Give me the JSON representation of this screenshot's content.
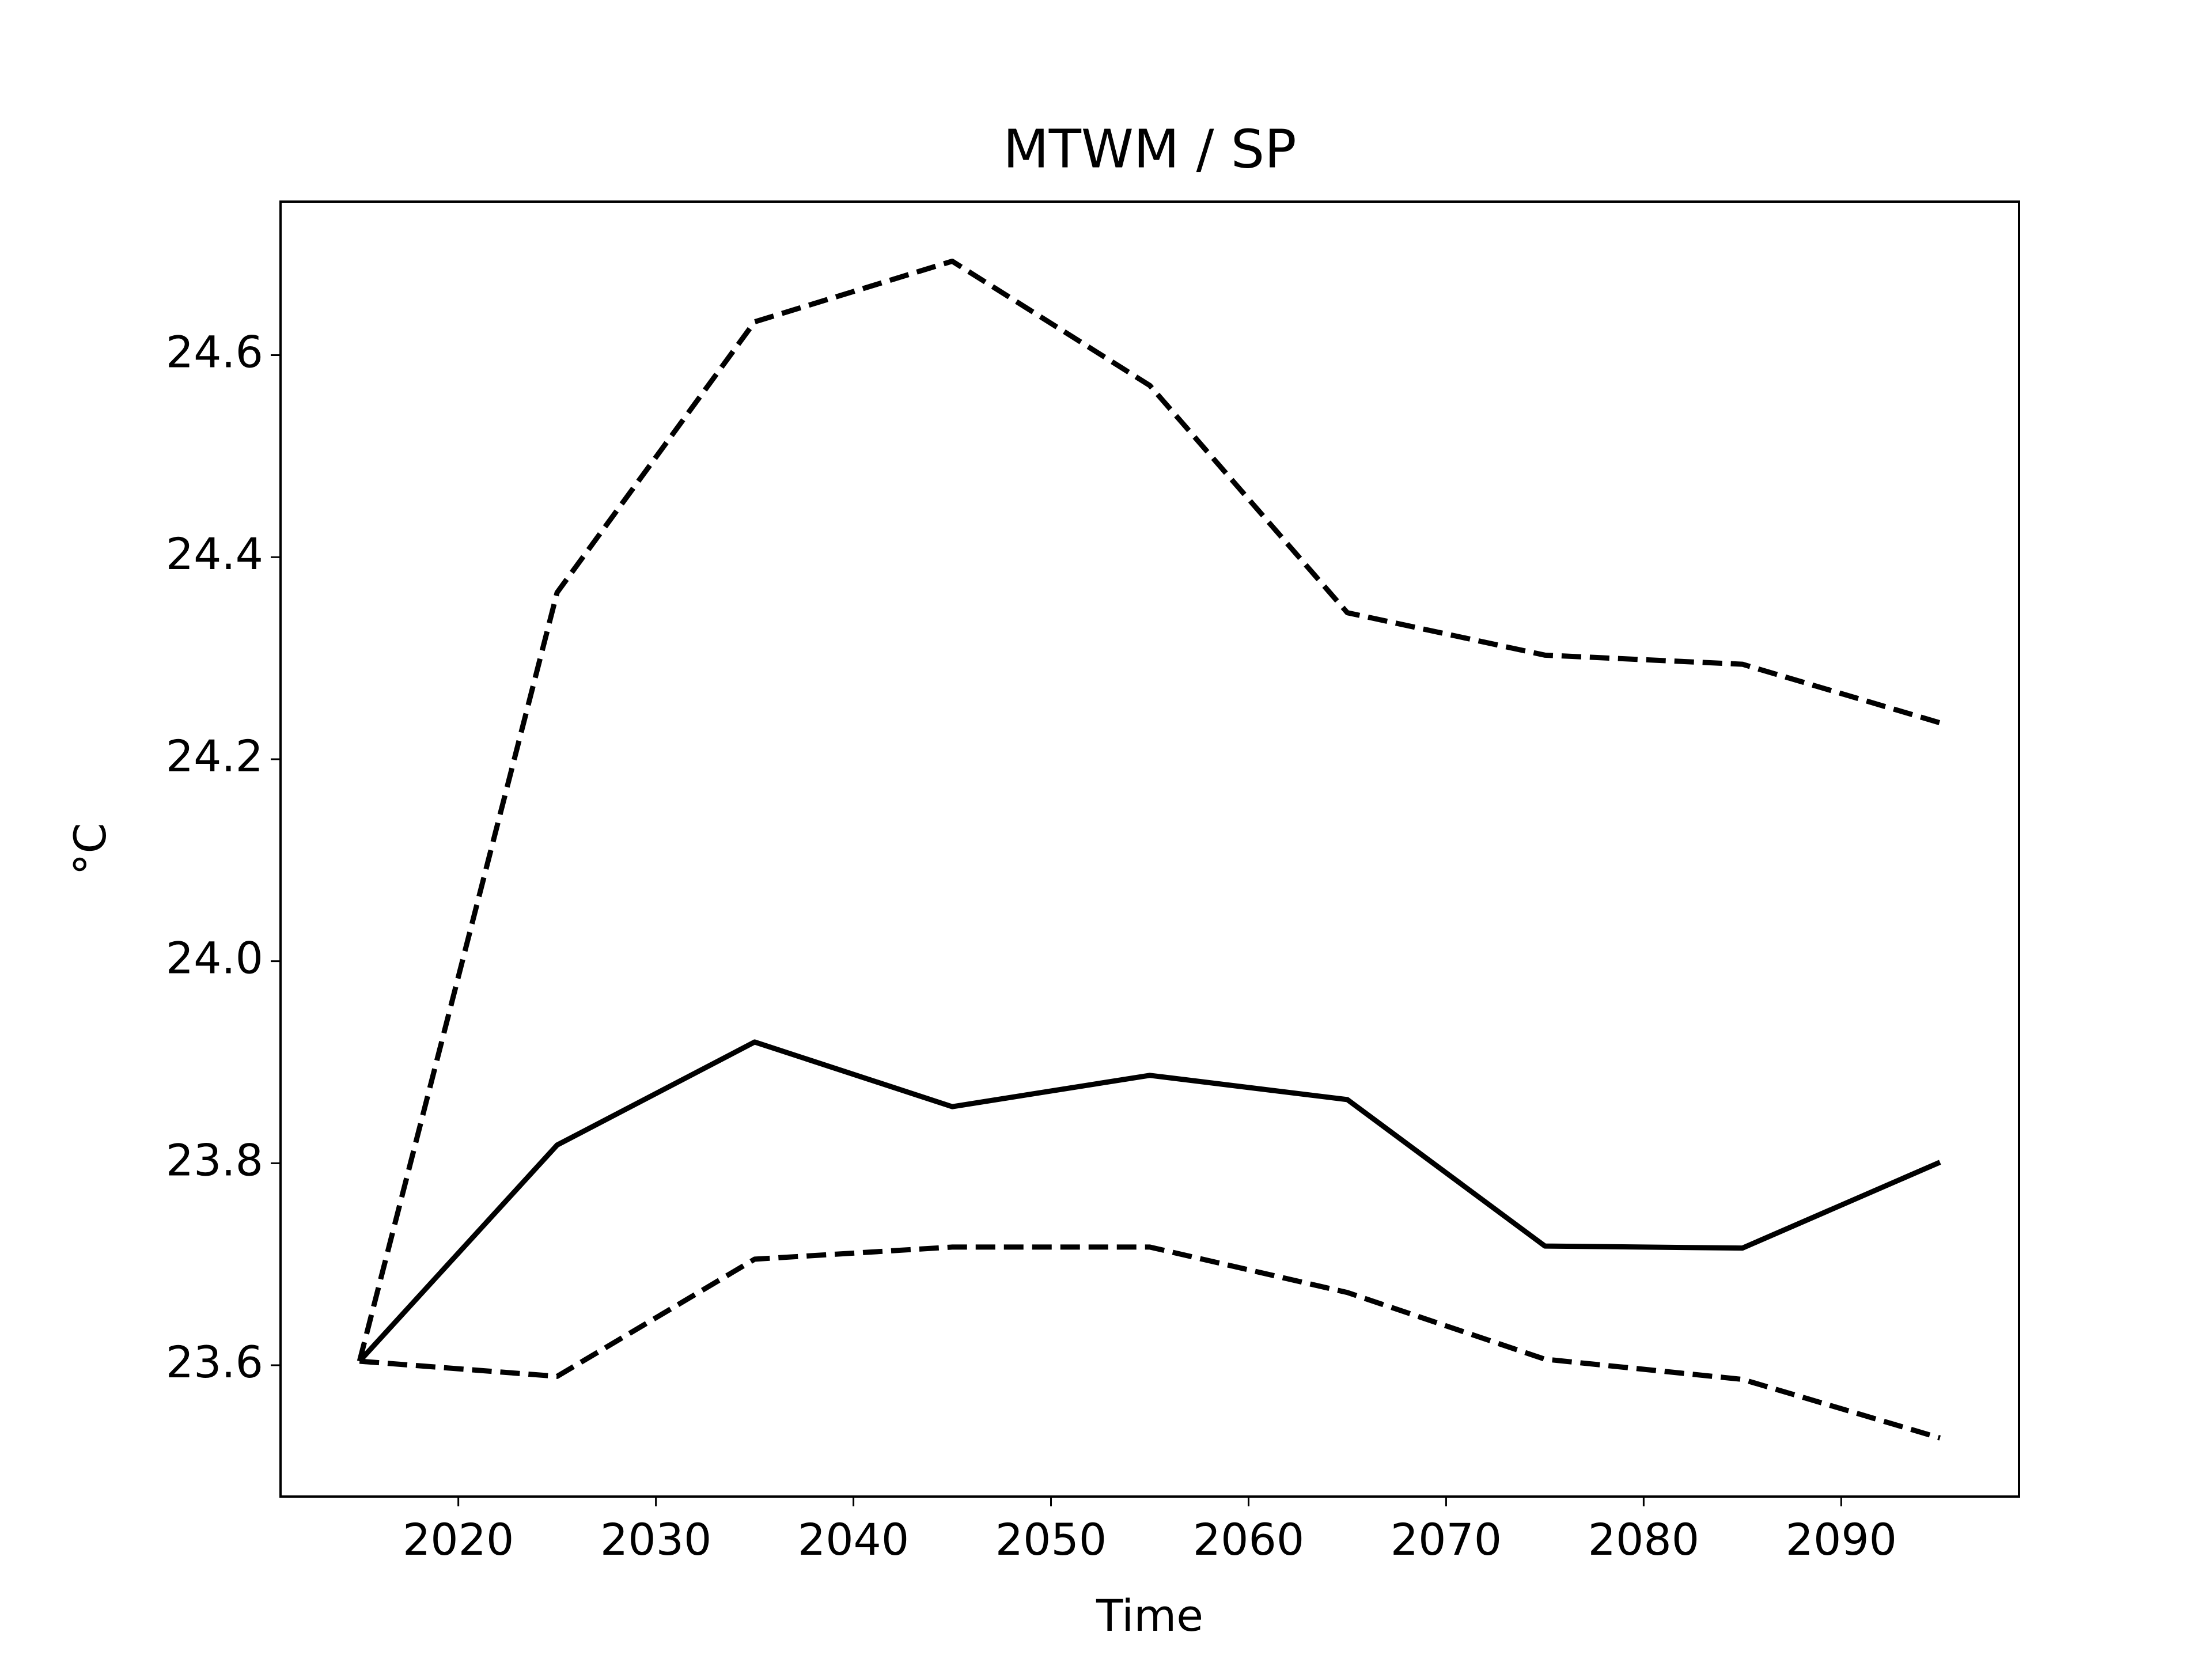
{
  "chart_data": {
    "type": "line",
    "title": "MTWM / SP",
    "x_label": "Time",
    "y_label": "°C",
    "x": [
      2015,
      2025,
      2035,
      2045,
      2055,
      2065,
      2075,
      2085,
      2095
    ],
    "series": [
      {
        "color": "#000000",
        "linestyle": "solid",
        "values": [
          23.604,
          23.818,
          23.92,
          23.856,
          23.887,
          23.863,
          23.718,
          23.716,
          23.801
        ]
      },
      {
        "color": "#000000",
        "linestyle": "dashed",
        "values": [
          23.604,
          24.365,
          24.633,
          24.693,
          24.57,
          24.345,
          24.303,
          24.294,
          24.236
        ]
      },
      {
        "color": "#000000",
        "linestyle": "dashed",
        "values": [
          23.604,
          23.589,
          23.705,
          23.717,
          23.717,
          23.672,
          23.606,
          23.586,
          23.528
        ]
      }
    ],
    "xlim": [
      2011,
      2099
    ],
    "xticks": [
      2020,
      2030,
      2040,
      2050,
      2060,
      2070,
      2080,
      2090
    ],
    "ylim": [
      23.47,
      24.752
    ],
    "yticks": [
      23.6,
      23.8,
      {
        "value": 24,
        "label": "24.0"
      },
      24.2,
      24.4,
      24.6
    ],
    "grid": false
  }
}
